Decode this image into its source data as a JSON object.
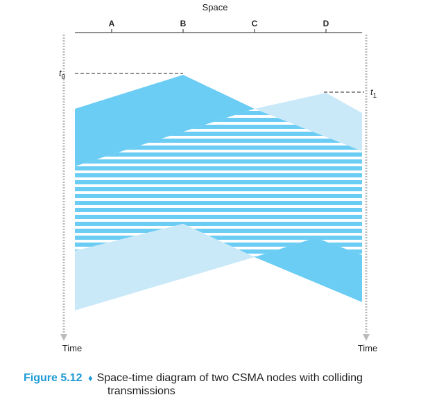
{
  "axis": {
    "space_label": "Space",
    "time_left": "Time",
    "time_right": "Time"
  },
  "nodes": [
    "A",
    "B",
    "C",
    "D"
  ],
  "markers": {
    "t0": {
      "base": "t",
      "sub": "0"
    },
    "t1": {
      "base": "t",
      "sub": "1"
    }
  },
  "colors": {
    "dark_blue": "#6bccf4",
    "light_blue": "#c9e9f9",
    "axis": "#bbbbbb",
    "accent": "#1e9ad6"
  },
  "caption": {
    "figure_label": "Figure 5.12",
    "separator": "♦",
    "text_line1": "Space-time diagram of two CSMA nodes with colliding",
    "text_line2": "transmissions"
  }
}
